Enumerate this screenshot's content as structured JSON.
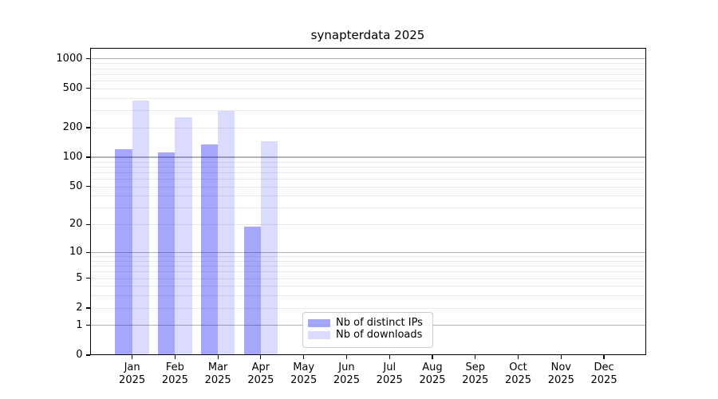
{
  "chart_data": {
    "type": "bar",
    "title": "synapterdata 2025",
    "xlabel": "",
    "ylabel": "",
    "x": {
      "categories": [
        "Jan",
        "Feb",
        "Mar",
        "Apr",
        "May",
        "Jun",
        "Jul",
        "Aug",
        "Sep",
        "Oct",
        "Nov",
        "Dec"
      ],
      "year": "2025"
    },
    "series": [
      {
        "name": "Nb of distinct IPs",
        "color": "#a6a6f6",
        "fill": "rgba(0,0,240,0.35)",
        "values": [
          121,
          112,
          134,
          19,
          0,
          0,
          0,
          0,
          0,
          0,
          0,
          0
        ]
      },
      {
        "name": "Nb of downloads",
        "color": "#dcdcfb",
        "fill": "rgba(0,0,240,0.14)",
        "values": [
          380,
          256,
          297,
          145,
          0,
          0,
          0,
          0,
          0,
          0,
          0,
          0
        ]
      }
    ],
    "y_axis": {
      "scale": "log10(1+y)",
      "ticks": [
        0,
        1,
        2,
        5,
        10,
        20,
        50,
        100,
        200,
        500,
        1000
      ],
      "t_max": 3.115
    },
    "grid": {
      "on": true,
      "major_values": [
        1,
        10,
        100,
        1000
      ],
      "minor_values": [
        2,
        3,
        4,
        5,
        6,
        7,
        8,
        9,
        20,
        30,
        40,
        50,
        60,
        70,
        80,
        90,
        200,
        300,
        400,
        500,
        600,
        700,
        800,
        900
      ],
      "major_color": "#b2b2b2",
      "minor_color": "#e9e9e9"
    },
    "legend": {
      "position": "inside-lower-center",
      "items": [
        "Nb of distinct IPs",
        "Nb of downloads"
      ]
    },
    "colors": {
      "spine": "#000000",
      "text": "#000000",
      "background": "#ffffff"
    }
  }
}
